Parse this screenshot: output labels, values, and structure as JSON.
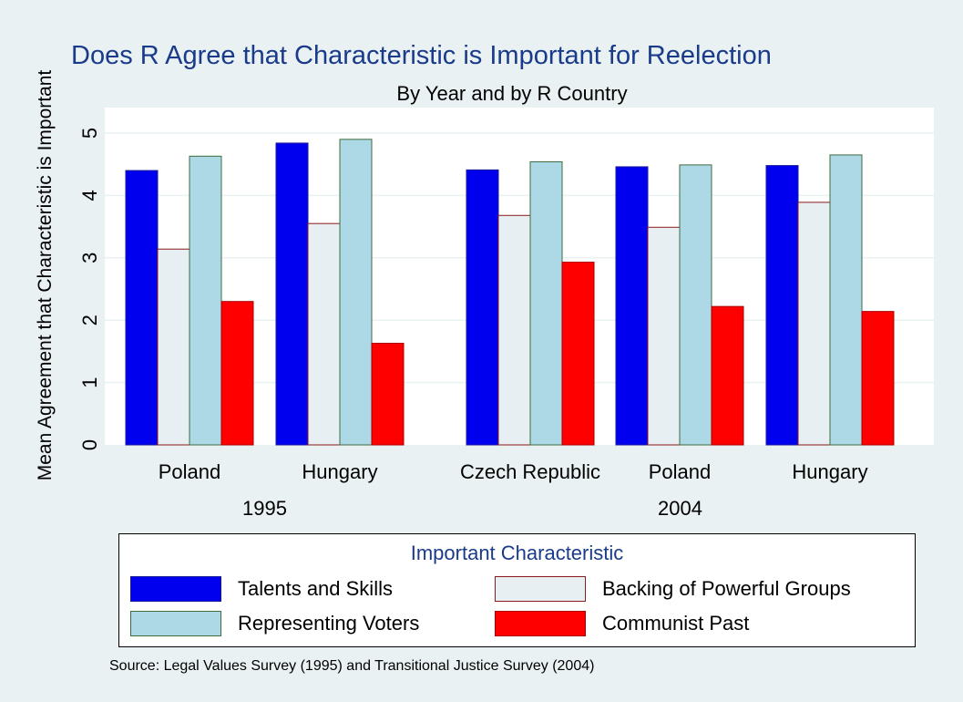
{
  "chart_data": {
    "type": "bar",
    "title": "Does R Agree that Characteristic is Important for Reelection",
    "subtitle": "By Year and by R Country",
    "ylabel": "Mean Agreement that Characteristic is Important",
    "ylim": [
      0,
      5.4
    ],
    "yticks": [
      "0",
      "1",
      "2",
      "3",
      "4",
      "5"
    ],
    "grid": true,
    "groups": [
      {
        "year": "1995",
        "countries": [
          "Poland",
          "Hungary"
        ]
      },
      {
        "year": "2004",
        "countries": [
          "Czech Republic",
          "Poland",
          "Hungary"
        ]
      }
    ],
    "categories": [
      "Poland 1995",
      "Hungary 1995",
      "Czech Republic 2004",
      "Poland 2004",
      "Hungary 2004"
    ],
    "series": [
      {
        "name": "Talents and Skills",
        "values": [
          4.4,
          4.84,
          4.41,
          4.46,
          4.48
        ]
      },
      {
        "name": "Backing of Powerful Groups",
        "values": [
          3.14,
          3.55,
          3.68,
          3.49,
          3.89
        ]
      },
      {
        "name": "Representing Voters",
        "values": [
          4.63,
          4.9,
          4.54,
          4.49,
          4.65
        ]
      },
      {
        "name": "Communist Past",
        "values": [
          2.3,
          1.63,
          2.93,
          2.22,
          2.14
        ]
      }
    ],
    "colors": [
      "#0000ee",
      "#e8eff2",
      "#add8e6",
      "#ff0000"
    ],
    "edge_colors": [
      "#1a1a99",
      "#8b1a1a",
      "#3d6b3d",
      "#aa0000"
    ],
    "legend_title": "Important Characteristic",
    "legend_position": "bottom"
  },
  "source_note": "Source: Legal Values Survey (1995) and Transitional Justice Survey (2004)"
}
